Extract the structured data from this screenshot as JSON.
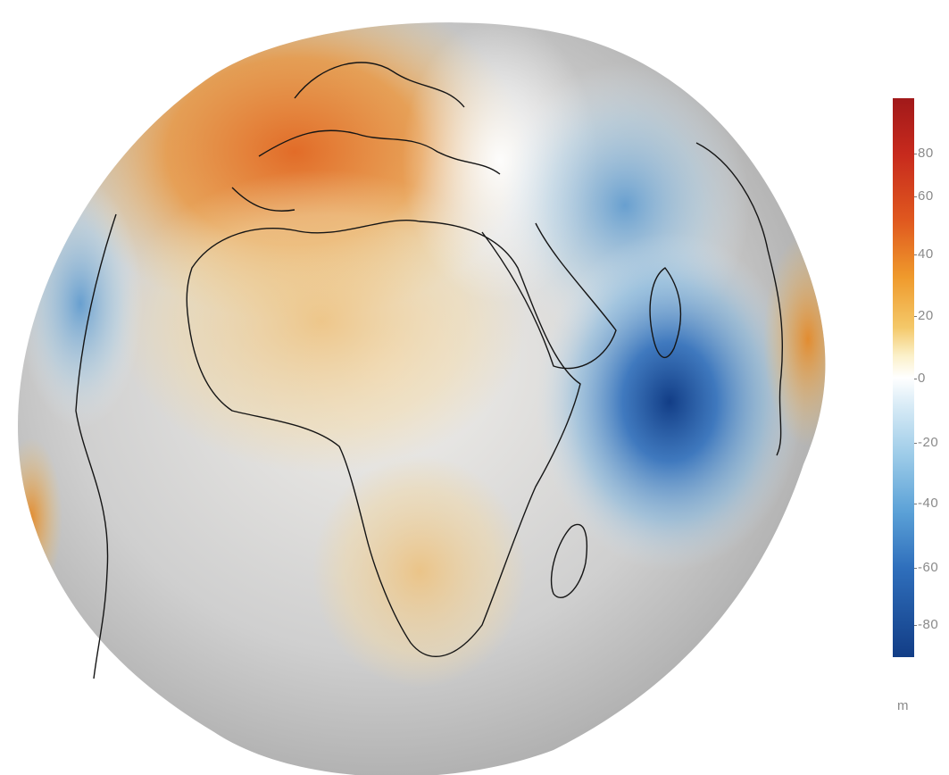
{
  "colorbar": {
    "ticks": [
      "80",
      "60",
      "40",
      "20",
      "0",
      "-20",
      "-40",
      "-60",
      "-80"
    ],
    "unit": "m",
    "colors": {
      "high": "#a1191a",
      "mid": "#ffffff",
      "low": "#123d86"
    }
  },
  "globe": {
    "colors": {
      "high": "#d9541d",
      "neutral": "#cfcfcf",
      "low": "#1a4f98",
      "outline": "#111111"
    }
  }
}
